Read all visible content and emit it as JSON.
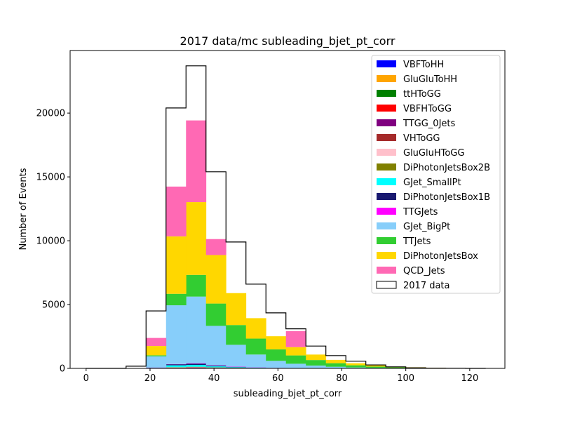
{
  "chart_data": {
    "type": "bar",
    "title": "2017 data/mc subleading_bjet_pt_corr",
    "xlabel": "subleading_bjet_pt_corr",
    "ylabel": "Number of Events",
    "xlim": [
      -5,
      131
    ],
    "ylim": [
      0,
      24900
    ],
    "x_ticks": [
      0,
      20,
      40,
      60,
      80,
      100,
      120
    ],
    "y_ticks": [
      0,
      5000,
      10000,
      15000,
      20000
    ],
    "legend_position": "upper right",
    "bin_edges": [
      0,
      6.25,
      12.5,
      18.75,
      25,
      31.25,
      37.5,
      43.75,
      50,
      56.25,
      62.5,
      68.75,
      75,
      81.25,
      87.5,
      93.75,
      100,
      106.25,
      112.5,
      118.75,
      125
    ],
    "series": [
      {
        "name": "VBFToHH",
        "color": "#0000ff",
        "values": [
          0,
          0,
          0,
          0,
          0,
          0,
          0,
          0,
          0,
          0,
          0,
          0,
          0,
          0,
          0,
          0,
          0,
          0,
          0,
          0
        ]
      },
      {
        "name": "GluGluToHH",
        "color": "#ffa500",
        "values": [
          0,
          0,
          0,
          0,
          0,
          0,
          0,
          0,
          0,
          0,
          0,
          0,
          0,
          0,
          0,
          0,
          0,
          0,
          0,
          0
        ]
      },
      {
        "name": "ttHToGG",
        "color": "#008000",
        "values": [
          0,
          0,
          0,
          2,
          5,
          6,
          4,
          3,
          2,
          1,
          1,
          0,
          0,
          0,
          0,
          0,
          0,
          0,
          0,
          0
        ]
      },
      {
        "name": "VBFHToGG",
        "color": "#ff0000",
        "values": [
          0,
          0,
          0,
          1,
          3,
          3,
          2,
          1,
          1,
          0,
          0,
          0,
          0,
          0,
          0,
          0,
          0,
          0,
          0,
          0
        ]
      },
      {
        "name": "TTGG_0Jets",
        "color": "#800080",
        "values": [
          0,
          0,
          0,
          10,
          40,
          60,
          40,
          25,
          15,
          8,
          5,
          3,
          2,
          1,
          0,
          0,
          0,
          0,
          0,
          0
        ]
      },
      {
        "name": "VHToGG",
        "color": "#a52a2a",
        "values": [
          0,
          0,
          0,
          1,
          4,
          5,
          3,
          2,
          1,
          1,
          0,
          0,
          0,
          0,
          0,
          0,
          0,
          0,
          0,
          0
        ]
      },
      {
        "name": "GluGluHToGG",
        "color": "#ffc0cb",
        "values": [
          0,
          0,
          0,
          5,
          20,
          25,
          15,
          10,
          5,
          3,
          2,
          1,
          0,
          0,
          0,
          0,
          0,
          0,
          0,
          0
        ]
      },
      {
        "name": "DiPhotonJetsBox2B",
        "color": "#808000",
        "values": [
          0,
          0,
          0,
          5,
          20,
          25,
          15,
          10,
          5,
          3,
          2,
          1,
          0,
          0,
          0,
          0,
          0,
          0,
          0,
          0
        ]
      },
      {
        "name": "GJet_SmallPt",
        "color": "#00ffff",
        "values": [
          0,
          0,
          0,
          20,
          150,
          150,
          80,
          40,
          20,
          10,
          5,
          3,
          2,
          1,
          0,
          0,
          0,
          0,
          0,
          0
        ]
      },
      {
        "name": "DiPhotonJetsBox1B",
        "color": "#191970",
        "values": [
          0,
          0,
          0,
          15,
          80,
          100,
          60,
          30,
          15,
          8,
          5,
          2,
          1,
          0,
          0,
          0,
          0,
          0,
          0,
          0
        ]
      },
      {
        "name": "TTGJets",
        "color": "#ff00ff",
        "values": [
          0,
          0,
          0,
          5,
          20,
          30,
          20,
          15,
          10,
          5,
          3,
          2,
          1,
          0,
          0,
          0,
          0,
          0,
          0,
          0
        ]
      },
      {
        "name": "GJet_BigPt",
        "color": "#87cefa",
        "values": [
          0,
          0,
          0,
          880,
          4600,
          5220,
          3090,
          1710,
          1010,
          550,
          340,
          210,
          120,
          70,
          40,
          20,
          10,
          5,
          3,
          1
        ]
      },
      {
        "name": "TTJets",
        "color": "#32cd32",
        "values": [
          0,
          0,
          0,
          80,
          900,
          1700,
          1750,
          1550,
          1250,
          900,
          650,
          430,
          280,
          170,
          100,
          60,
          35,
          20,
          12,
          5
        ]
      },
      {
        "name": "DiPhotonJetsBox",
        "color": "#ffd700",
        "values": [
          0,
          0,
          0,
          730,
          4500,
          5700,
          3800,
          2500,
          1600,
          1030,
          650,
          430,
          260,
          160,
          100,
          60,
          40,
          20,
          12,
          5
        ]
      },
      {
        "name": "QCD_Jets",
        "color": "#ff69b4",
        "values": [
          0,
          0,
          0,
          630,
          3900,
          6400,
          1250,
          0,
          0,
          0,
          1250,
          0,
          0,
          0,
          0,
          0,
          0,
          0,
          0,
          0
        ]
      },
      {
        "name": "2017 data",
        "color": "#000000",
        "style": "step",
        "values": [
          0,
          0,
          170,
          4500,
          20400,
          23700,
          15400,
          9900,
          6600,
          4350,
          3100,
          1750,
          1000,
          560,
          270,
          120,
          40,
          15,
          5,
          0
        ]
      }
    ]
  }
}
